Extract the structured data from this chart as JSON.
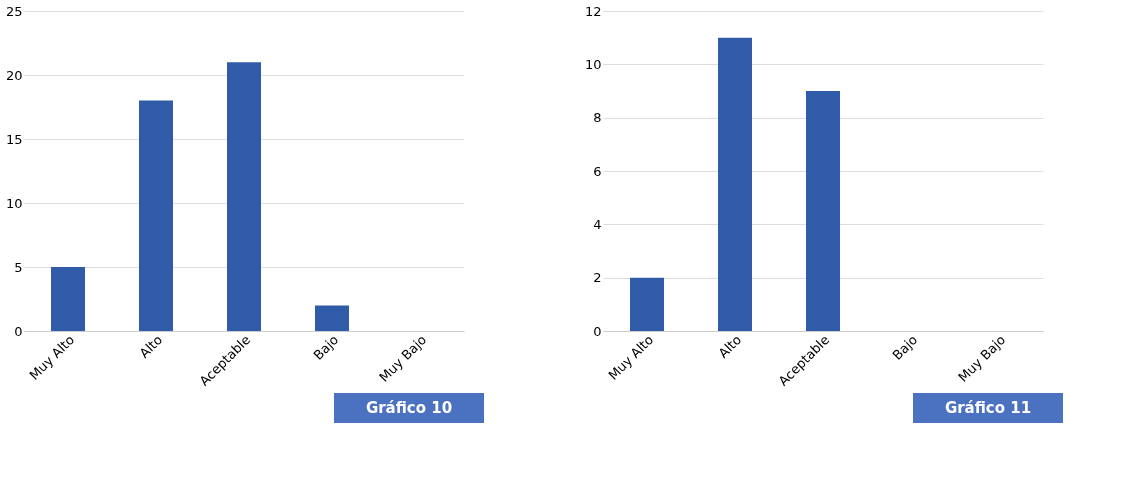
{
  "chart_data": [
    {
      "type": "bar",
      "categories": [
        "Muy Alto",
        "Alto",
        "Aceptable",
        "Bajo",
        "Muy Bajo"
      ],
      "values": [
        5,
        18,
        21,
        2,
        0
      ],
      "color": "#2f5ba8",
      "ylim": [
        0,
        25
      ],
      "yticks": [
        0,
        5,
        10,
        15,
        20,
        25
      ],
      "grid": "y",
      "annotations": [
        "Gráfico 10"
      ]
    },
    {
      "type": "bar",
      "categories": [
        "Muy Alto",
        "Alto",
        "Aceptable",
        "Bajo",
        "Muy Bajo"
      ],
      "values": [
        2,
        11,
        9,
        0,
        0
      ],
      "color": "#2f5ba8",
      "ylim": [
        0,
        12
      ],
      "yticks": [
        0,
        2,
        4,
        6,
        8,
        10,
        12
      ],
      "grid": "y",
      "annotations": [
        "Gráfico 11"
      ]
    }
  ]
}
